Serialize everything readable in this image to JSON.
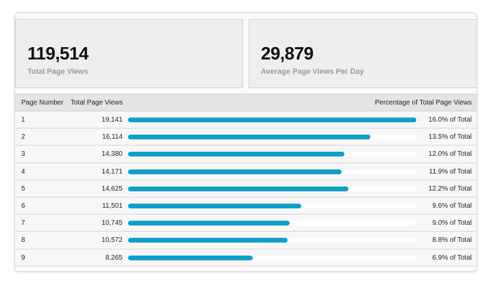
{
  "stats": [
    {
      "value": "119,514",
      "label": "Total Page Views"
    },
    {
      "value": "29,879",
      "label": "Average Page Views Per Day"
    }
  ],
  "table": {
    "headers": {
      "page_number": "Page Number",
      "total_views": "Total Page Views",
      "percentage": "Percentage of Total Page Views"
    },
    "max_views": 19141,
    "rows": [
      {
        "page": "1",
        "views": "19,141",
        "views_num": 19141,
        "pct": "16.0% of Total"
      },
      {
        "page": "2",
        "views": "16,114",
        "views_num": 16114,
        "pct": "13.5% of Total"
      },
      {
        "page": "3",
        "views": "14,380",
        "views_num": 14380,
        "pct": "12.0% of Total"
      },
      {
        "page": "4",
        "views": "14,171",
        "views_num": 14171,
        "pct": "11.9% of Total"
      },
      {
        "page": "5",
        "views": "14,625",
        "views_num": 14625,
        "pct": "12.2% of Total"
      },
      {
        "page": "6",
        "views": "11,501",
        "views_num": 11501,
        "pct": "9.6% of Total"
      },
      {
        "page": "7",
        "views": "10,745",
        "views_num": 10745,
        "pct": "9.0% of Total"
      },
      {
        "page": "8",
        "views": "10,572",
        "views_num": 10572,
        "pct": "8.8% of Total"
      },
      {
        "page": "9",
        "views": "8,265",
        "views_num": 8265,
        "pct": "6.9% of Total"
      }
    ]
  },
  "colors": {
    "bar": "#0fa0c8",
    "track": "#ffffff"
  }
}
